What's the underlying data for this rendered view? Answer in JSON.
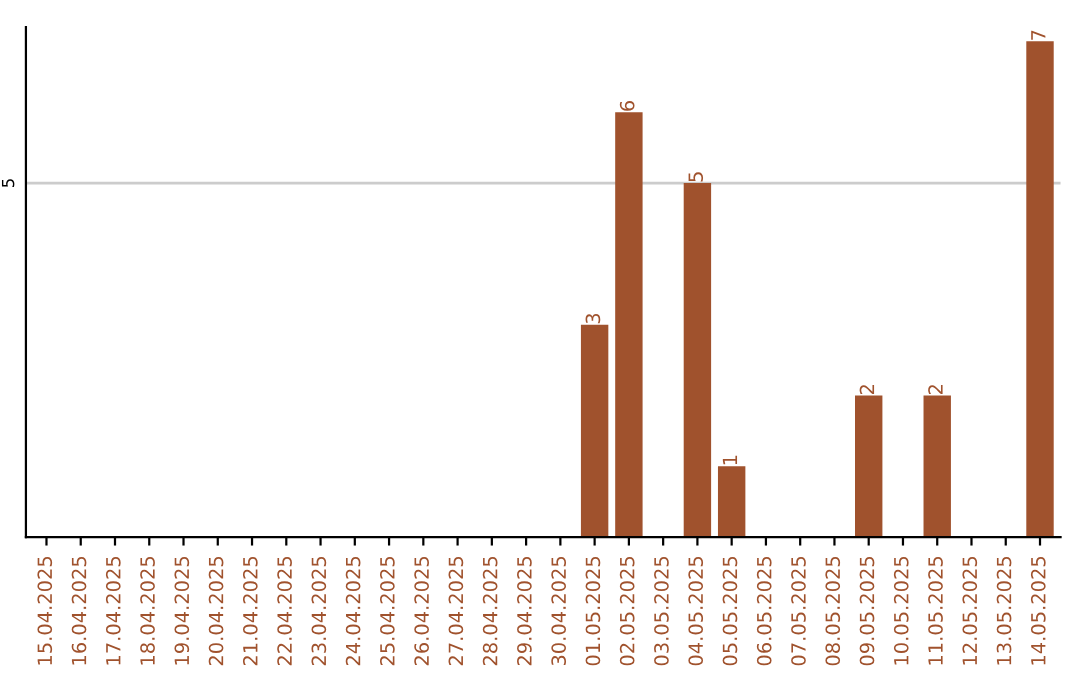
{
  "chart_data": {
    "type": "bar",
    "categories": [
      "15.04.2025",
      "16.04.2025",
      "17.04.2025",
      "18.04.2025",
      "19.04.2025",
      "20.04.2025",
      "21.04.2025",
      "22.04.2025",
      "23.04.2025",
      "24.04.2025",
      "25.04.2025",
      "26.04.2025",
      "27.04.2025",
      "28.04.2025",
      "29.04.2025",
      "30.04.2025",
      "01.05.2025",
      "02.05.2025",
      "03.05.2025",
      "04.05.2025",
      "05.05.2025",
      "06.05.2025",
      "07.05.2025",
      "08.05.2025",
      "09.05.2025",
      "10.05.2025",
      "11.05.2025",
      "12.05.2025",
      "13.05.2025",
      "14.05.2025"
    ],
    "values": [
      null,
      null,
      null,
      null,
      null,
      null,
      null,
      null,
      null,
      null,
      null,
      null,
      null,
      null,
      null,
      null,
      3,
      6,
      null,
      5,
      1,
      null,
      null,
      null,
      2,
      null,
      2,
      null,
      null,
      7
    ],
    "data_labels": true,
    "color": "#a0522d",
    "ylim": [
      0,
      7.2
    ],
    "ref_lines": [
      {
        "axis": "y",
        "value": 5,
        "label": "5",
        "color": "#cccccc"
      }
    ]
  }
}
